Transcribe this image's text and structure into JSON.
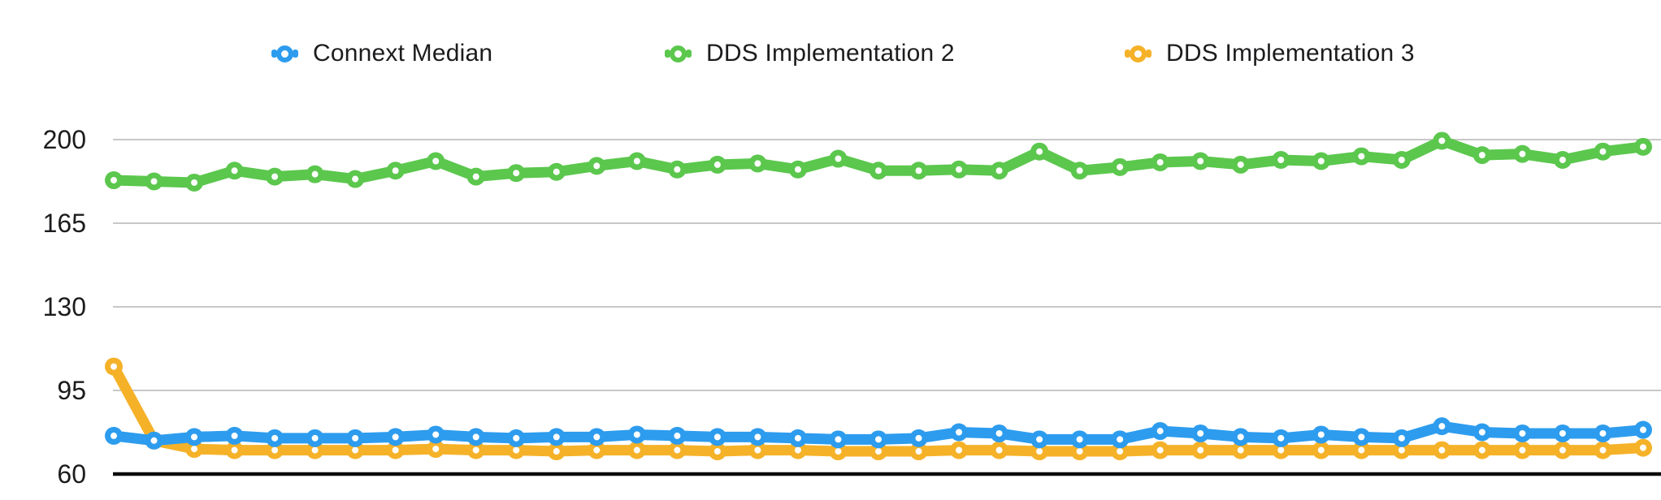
{
  "legend": {
    "items": [
      {
        "label": "Connext Median",
        "color": "#2D9CEE"
      },
      {
        "label": "DDS Implementation 2",
        "color": "#5BC74D"
      },
      {
        "label": "DDS Implementation 3",
        "color": "#F5B229"
      }
    ]
  },
  "chart_data": {
    "type": "line",
    "title": "",
    "xlabel": "",
    "ylabel": "",
    "x_labels": null,
    "n_points": 39,
    "ylim": [
      60,
      200
    ],
    "yticks": [
      200,
      165,
      130,
      95,
      60
    ],
    "grid": true,
    "legend_position": "top",
    "grid_color": "#c8c8c8",
    "baseline_color": "#0a0a0a",
    "tick_label_color": "#1c1c1e",
    "draw_order": [
      "DDS Implementation 3",
      "Connext Median",
      "DDS Implementation 2"
    ],
    "series": [
      {
        "name": "Connext Median",
        "color": "#2D9CEE",
        "values": [
          76,
          74,
          75.5,
          76,
          75,
          75,
          75,
          75.5,
          76.5,
          75.5,
          75,
          75.5,
          75.5,
          76.5,
          76,
          75.5,
          75.5,
          75,
          74.5,
          74.5,
          75,
          77.5,
          77,
          74.5,
          74.5,
          74.5,
          78,
          77,
          75.5,
          75,
          76.5,
          75.5,
          75,
          80,
          77.5,
          77,
          77,
          77,
          78.5
        ]
      },
      {
        "name": "DDS Implementation 2",
        "color": "#5BC74D",
        "values": [
          183,
          182.5,
          182,
          187,
          184.5,
          185.5,
          183.5,
          187,
          191,
          184.5,
          186,
          186.5,
          189,
          191,
          187.5,
          189.5,
          190,
          187.5,
          192,
          187,
          187,
          187.5,
          187,
          195,
          187,
          188.5,
          190.5,
          191,
          189.5,
          191.5,
          191,
          193,
          191.5,
          199.5,
          193.5,
          194,
          191.5,
          195,
          197
        ]
      },
      {
        "name": "DDS Implementation 3",
        "color": "#F5B229",
        "values": [
          105,
          74,
          70.5,
          70,
          70,
          70,
          70,
          70,
          70.5,
          70,
          70,
          69.5,
          70,
          70,
          70,
          69.5,
          70,
          70,
          69.5,
          69.5,
          69.5,
          70,
          70,
          69.5,
          69.5,
          69.5,
          70,
          70,
          70,
          70,
          70,
          70,
          70,
          70,
          70,
          70,
          70,
          70,
          71
        ]
      }
    ]
  }
}
